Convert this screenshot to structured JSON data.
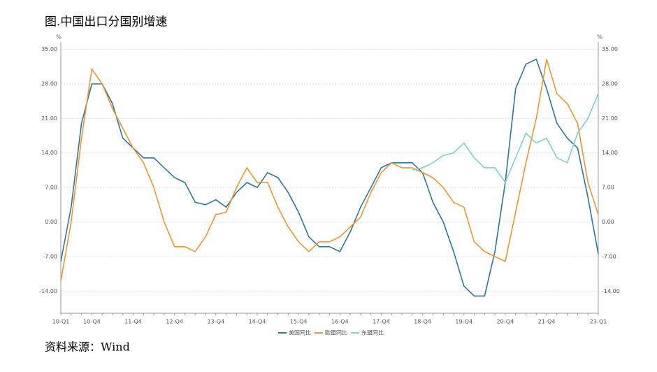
{
  "chart_data": {
    "type": "line",
    "title": "图.中国出口分国别增速",
    "source": "资料来源：Wind",
    "y_unit": "%",
    "categories": [
      "10-Q1",
      null,
      null,
      "10-Q4",
      null,
      null,
      null,
      "11-Q4",
      null,
      null,
      null,
      "12-Q4",
      null,
      null,
      null,
      "13-Q4",
      null,
      null,
      null,
      "14-Q4",
      null,
      null,
      null,
      "15-Q4",
      null,
      null,
      null,
      "16-Q4",
      null,
      null,
      null,
      "17-Q4",
      null,
      null,
      null,
      "18-Q4",
      null,
      null,
      null,
      "19-Q4",
      null,
      null,
      null,
      "20-Q4",
      null,
      null,
      null,
      "21-Q4",
      null,
      null,
      null,
      null,
      "23-Q1"
    ],
    "series": [
      {
        "name": "美国同比",
        "color": "#2e75a0",
        "values": [
          -8,
          3,
          20,
          28,
          28,
          24,
          17,
          15,
          13,
          13,
          11,
          9,
          8,
          4,
          3.5,
          4.5,
          3,
          6,
          8,
          7,
          10,
          9,
          6,
          2,
          -3,
          -5,
          -5,
          -6,
          -2,
          3,
          7,
          11,
          12,
          12,
          12,
          10,
          4,
          0,
          -6,
          -13,
          -15,
          -15,
          -6,
          8,
          27,
          32,
          33,
          27,
          20,
          17,
          15,
          5,
          -6.5
        ]
      },
      {
        "name": "欧盟同比",
        "color": "#f0952e",
        "values": [
          -12,
          0,
          17,
          31,
          28,
          23,
          19,
          15,
          12,
          7,
          0,
          -5,
          -5,
          -6,
          -3,
          1.5,
          2,
          7,
          11,
          8,
          8,
          3,
          -1,
          -4,
          -6,
          -4,
          -4,
          -3,
          -1,
          1,
          6,
          10,
          12,
          11,
          11,
          10,
          9,
          7,
          4,
          3,
          -4,
          -6,
          -7,
          -8,
          2,
          12,
          21,
          33,
          26,
          24,
          20,
          8,
          1.5
        ]
      },
      {
        "name": "东盟同比",
        "color": "#7fcfcc",
        "values": [
          null,
          null,
          null,
          null,
          null,
          null,
          null,
          null,
          null,
          null,
          null,
          null,
          null,
          null,
          null,
          null,
          null,
          null,
          null,
          null,
          null,
          null,
          null,
          null,
          null,
          null,
          null,
          null,
          null,
          null,
          null,
          null,
          null,
          null,
          10.5,
          11,
          12,
          13.5,
          14,
          16,
          13,
          11,
          11,
          8,
          13,
          18,
          16,
          17,
          13,
          12,
          18,
          21,
          26
        ]
      }
    ],
    "ylim": [
      -18.5,
      36.5
    ],
    "yticks": [
      {
        "value": -14,
        "label": "-14.00"
      },
      {
        "value": -7,
        "label": "-7.00"
      },
      {
        "value": 0,
        "label": "0.00"
      },
      {
        "value": 7,
        "label": "7.00"
      },
      {
        "value": 14,
        "label": "14.00"
      },
      {
        "value": 21,
        "label": "21.00"
      },
      {
        "value": 28,
        "label": "28.00"
      },
      {
        "value": 35,
        "label": "35.00"
      }
    ],
    "grid": true
  }
}
